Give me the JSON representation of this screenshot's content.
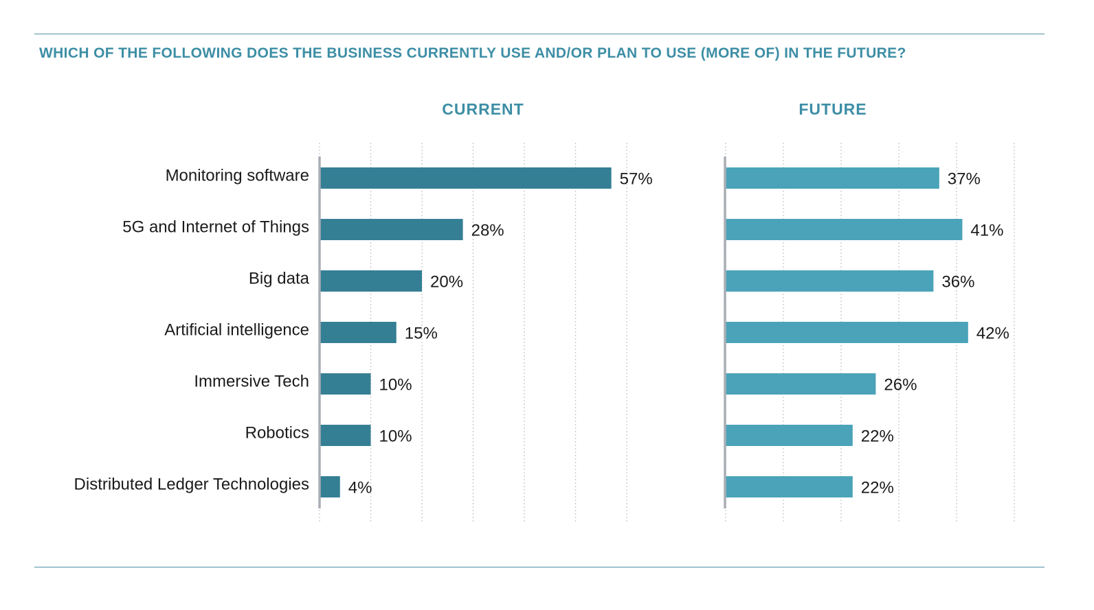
{
  "question": "WHICH OF THE FOLLOWING DOES THE BUSINESS CURRENTLY USE AND/OR PLAN TO USE (MORE OF) IN THE FUTURE?",
  "colors": {
    "current": "#357f95",
    "future": "#4aa3b8",
    "title": "#3d8ea5",
    "rule": "#4f8fa3"
  },
  "chart_data": [
    {
      "type": "bar",
      "orientation": "horizontal",
      "title": "CURRENT",
      "categories": [
        "Monitoring software",
        "5G and Internet of Things",
        "Big data",
        "Artificial intelligence",
        "Immersive Tech",
        "Robotics",
        "Distributed Ledger Technologies"
      ],
      "values": [
        57,
        28,
        20,
        15,
        10,
        10,
        4
      ],
      "value_labels": [
        "57%",
        "28%",
        "20%",
        "15%",
        "10%",
        "10%",
        "4%"
      ],
      "xlim": [
        0,
        60
      ],
      "grid": true,
      "color": "#357f95"
    },
    {
      "type": "bar",
      "orientation": "horizontal",
      "title": "FUTURE",
      "categories": [
        "Monitoring software",
        "5G and Internet of Things",
        "Big data",
        "Artificial intelligence",
        "Immersive Tech",
        "Robotics",
        "Distributed Ledger Technologies"
      ],
      "values": [
        37,
        41,
        36,
        42,
        26,
        22,
        22
      ],
      "value_labels": [
        "37%",
        "41%",
        "36%",
        "42%",
        "26%",
        "22%",
        "22%"
      ],
      "xlim": [
        0,
        50
      ],
      "grid": true,
      "color": "#4aa3b8"
    }
  ]
}
